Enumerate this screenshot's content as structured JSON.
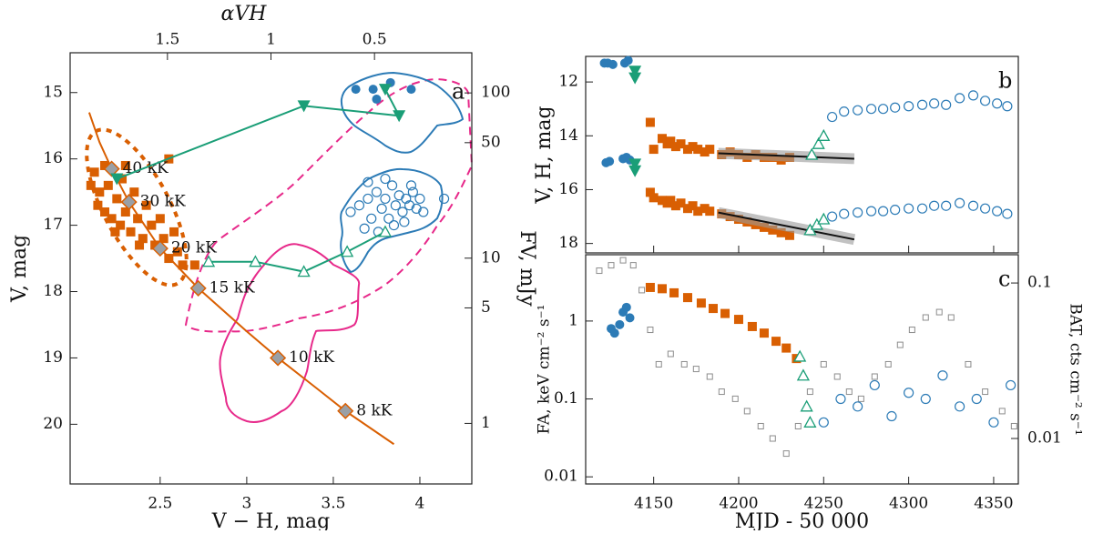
{
  "chart_data": [
    {
      "type": "scatter",
      "label": "a",
      "xlabel": "V − H, mag",
      "ylabel": "V, mag",
      "x2label": "αVH",
      "y2label": "FV, mJy",
      "xlim": [
        1.98,
        4.3
      ],
      "xticks": [
        2.5,
        3,
        3.5,
        4
      ],
      "ylim": [
        20.9,
        14.4
      ],
      "yticks": [
        15,
        16,
        17,
        18,
        19,
        20
      ],
      "x2lim": [
        1.97,
        0.03
      ],
      "x2ticks": [
        1.5,
        1,
        0.5
      ],
      "y2lim": [
        0.43,
        175
      ],
      "y2ticks": [
        100,
        50,
        10,
        5,
        1
      ],
      "y2log": true,
      "series": [
        {
          "color": "#d95f02",
          "marker": "square",
          "x": [
            2.12,
            2.15,
            2.18,
            2.2,
            2.22,
            2.25,
            2.27,
            2.28,
            2.3,
            2.33,
            2.35,
            2.37,
            2.4,
            2.42,
            2.45,
            2.47,
            2.5,
            2.52,
            2.55,
            2.58,
            2.6,
            2.63,
            2.3,
            2.18,
            2.14,
            2.24,
            2.38,
            2.55,
            2.7,
            2.1
          ],
          "values": [
            16.2,
            16.5,
            16.8,
            16.4,
            16.9,
            16.6,
            17.0,
            16.3,
            16.8,
            17.1,
            16.5,
            16.9,
            17.2,
            16.7,
            17.0,
            17.3,
            16.9,
            17.2,
            17.5,
            17.1,
            17.4,
            17.6,
            16.1,
            16.1,
            16.7,
            17.1,
            17.3,
            16.0,
            17.6,
            16.4
          ]
        },
        {
          "color": "#d95f02",
          "marker": "none",
          "line": true,
          "x": [
            2.09,
            2.15,
            2.22,
            2.32,
            2.5,
            2.72,
            3.0,
            3.18,
            3.4,
            3.57,
            3.85
          ],
          "values": [
            15.3,
            15.75,
            16.15,
            16.65,
            17.35,
            17.95,
            18.6,
            19.0,
            19.45,
            19.8,
            20.3
          ]
        },
        {
          "color": "#9aa0a6",
          "marker": "diamond",
          "x": [
            2.22,
            2.32,
            2.5,
            2.72,
            3.18,
            3.57
          ],
          "values": [
            16.15,
            16.65,
            17.35,
            17.95,
            19.0,
            19.8
          ],
          "labels": [
            "40 kK",
            "30 kK",
            "20 kK",
            "15 kK",
            "10 kK",
            "8 kK"
          ]
        },
        {
          "color": "#2c7bb6",
          "marker": "circle",
          "x": [
            3.63,
            3.73,
            3.83,
            3.95,
            3.75
          ],
          "values": [
            14.95,
            14.95,
            14.85,
            14.95,
            15.1
          ]
        },
        {
          "color": "#2c7bb6",
          "marker": "circle-open",
          "x": [
            3.6,
            3.65,
            3.7,
            3.72,
            3.75,
            3.78,
            3.8,
            3.82,
            3.84,
            3.86,
            3.88,
            3.9,
            3.92,
            3.94,
            3.96,
            3.98,
            4.0,
            3.85,
            3.76,
            3.68,
            3.91,
            4.02,
            4.14,
            3.8,
            3.95,
            3.7
          ],
          "values": [
            16.8,
            16.7,
            16.6,
            16.9,
            16.5,
            16.75,
            16.6,
            16.9,
            16.4,
            16.7,
            16.55,
            16.8,
            16.6,
            16.7,
            16.5,
            16.75,
            16.6,
            17.0,
            17.1,
            17.05,
            16.95,
            16.8,
            16.6,
            16.3,
            16.4,
            16.35
          ]
        },
        {
          "color": "#1a9e77",
          "marker": "triangle-down",
          "line": true,
          "x": [
            2.25,
            3.33,
            3.88,
            3.8
          ],
          "values": [
            16.3,
            15.2,
            15.35,
            14.95
          ]
        },
        {
          "color": "#1a9e77",
          "marker": "triangle-open",
          "line": true,
          "x": [
            2.78,
            3.05,
            3.33,
            3.58,
            3.8
          ],
          "values": [
            17.55,
            17.55,
            17.7,
            17.4,
            17.1
          ]
        }
      ]
    },
    {
      "type": "scatter",
      "label": "b",
      "ylabel": "V, H, mag",
      "xlim": [
        4110,
        4364.5
      ],
      "xticks": [
        4150,
        4200,
        4250,
        4300,
        4350
      ],
      "ylim": [
        18.35,
        11.05
      ],
      "yticks": [
        12,
        14,
        16,
        18
      ],
      "series": [
        {
          "color": "#2c7bb6",
          "marker": "circle",
          "x": [
            4121,
            4123,
            4126,
            4133,
            4135
          ],
          "values": [
            11.3,
            11.3,
            11.35,
            11.3,
            11.2
          ]
        },
        {
          "color": "#2c7bb6",
          "marker": "circle",
          "x": [
            4122,
            4124,
            4132,
            4134,
            4136
          ],
          "values": [
            15.0,
            14.95,
            14.85,
            14.8,
            14.9
          ]
        },
        {
          "color": "#1a9e77",
          "marker": "triangle-down",
          "x": [
            4139,
            4139,
            4139,
            4139
          ],
          "values": [
            11.6,
            11.85,
            15.05,
            15.3
          ]
        },
        {
          "color": "#d95f02",
          "marker": "square",
          "x": [
            4148,
            4150,
            4155,
            4158,
            4160,
            4163,
            4166,
            4170,
            4173,
            4176,
            4180,
            4183,
            4190,
            4195,
            4200,
            4205,
            4210,
            4215,
            4220,
            4225,
            4230
          ],
          "values": [
            13.5,
            14.5,
            14.1,
            14.3,
            14.2,
            14.4,
            14.3,
            14.5,
            14.4,
            14.5,
            14.6,
            14.5,
            14.7,
            14.6,
            14.7,
            14.8,
            14.7,
            14.8,
            14.8,
            14.9,
            14.8
          ]
        },
        {
          "color": "#d95f02",
          "marker": "square",
          "x": [
            4148,
            4150,
            4155,
            4158,
            4160,
            4163,
            4166,
            4170,
            4173,
            4176,
            4180,
            4183,
            4190,
            4195,
            4200,
            4205,
            4210,
            4215,
            4220,
            4225,
            4230
          ],
          "values": [
            16.1,
            16.3,
            16.4,
            16.5,
            16.4,
            16.6,
            16.5,
            16.7,
            16.6,
            16.8,
            16.7,
            16.8,
            16.9,
            17.0,
            17.1,
            17.2,
            17.3,
            17.4,
            17.5,
            17.6,
            17.7
          ]
        },
        {
          "color": "#111111",
          "marker": "none",
          "line": true,
          "band": true,
          "x": [
            4188,
            4268
          ],
          "values": [
            14.65,
            14.85
          ]
        },
        {
          "color": "#111111",
          "marker": "none",
          "line": true,
          "band": true,
          "x": [
            4188,
            4268
          ],
          "values": [
            16.85,
            17.85
          ]
        },
        {
          "color": "#1a9e77",
          "marker": "triangle-open",
          "x": [
            4243,
            4247,
            4250
          ],
          "values": [
            14.7,
            14.3,
            14.0
          ]
        },
        {
          "color": "#1a9e77",
          "marker": "triangle-open",
          "x": [
            4242,
            4246,
            4250
          ],
          "values": [
            17.5,
            17.3,
            17.1
          ]
        },
        {
          "color": "#2c7bb6",
          "marker": "circle-open",
          "x": [
            4255,
            4262,
            4270,
            4278,
            4285,
            4292,
            4300,
            4308,
            4315,
            4322,
            4330,
            4338,
            4345,
            4352,
            4358
          ],
          "values": [
            13.3,
            13.1,
            13.05,
            13.0,
            13.0,
            12.95,
            12.9,
            12.85,
            12.8,
            12.85,
            12.6,
            12.5,
            12.7,
            12.8,
            12.9
          ]
        },
        {
          "color": "#2c7bb6",
          "marker": "circle-open",
          "x": [
            4255,
            4262,
            4270,
            4278,
            4285,
            4292,
            4300,
            4308,
            4315,
            4322,
            4330,
            4338,
            4345,
            4352,
            4358
          ],
          "values": [
            17.0,
            16.9,
            16.85,
            16.8,
            16.8,
            16.75,
            16.7,
            16.7,
            16.6,
            16.6,
            16.5,
            16.6,
            16.7,
            16.8,
            16.9
          ]
        }
      ]
    },
    {
      "type": "scatter",
      "label": "c",
      "xlabel": "MJD - 50 000",
      "ylabel": "FA, keV cm⁻² s⁻¹",
      "y2label": "BAT, cts cm⁻² s⁻¹",
      "xlim": [
        4110,
        4364.5
      ],
      "xticks": [
        4150,
        4200,
        4250,
        4300,
        4350
      ],
      "ylim": [
        0.0081,
        7.1
      ],
      "yticks": [
        0.01,
        0.1,
        1
      ],
      "ylog": true,
      "y2lim": [
        0.0051,
        0.152
      ],
      "y2ticks": [
        0.01,
        0.1
      ],
      "y2log": true,
      "series": [
        {
          "color": "#8c8c8c",
          "marker": "square-open",
          "axis": "y2",
          "x": [
            4118,
            4125,
            4132,
            4138,
            4143,
            4148,
            4153,
            4160,
            4168,
            4175,
            4183,
            4190,
            4198,
            4205,
            4213,
            4220,
            4228,
            4235,
            4242,
            4250,
            4258,
            4265,
            4272,
            4280,
            4288,
            4295,
            4302,
            4310,
            4318,
            4325,
            4335,
            4345,
            4355,
            4362
          ],
          "values": [
            0.12,
            0.13,
            0.14,
            0.13,
            0.09,
            0.05,
            0.03,
            0.035,
            0.03,
            0.028,
            0.025,
            0.02,
            0.018,
            0.015,
            0.012,
            0.01,
            0.008,
            0.012,
            0.02,
            0.03,
            0.025,
            0.02,
            0.018,
            0.025,
            0.03,
            0.04,
            0.05,
            0.06,
            0.065,
            0.06,
            0.03,
            0.02,
            0.015,
            0.012
          ]
        },
        {
          "color": "#d95f02",
          "marker": "square",
          "x": [
            4148,
            4155,
            4162,
            4170,
            4178,
            4185,
            4192,
            4200,
            4208,
            4215,
            4222,
            4228,
            4234
          ],
          "values": [
            2.7,
            2.6,
            2.3,
            2.0,
            1.7,
            1.45,
            1.25,
            1.05,
            0.85,
            0.7,
            0.55,
            0.45,
            0.33
          ]
        },
        {
          "color": "#2c7bb6",
          "marker": "circle",
          "x": [
            4125,
            4127,
            4130,
            4132,
            4134,
            4136
          ],
          "values": [
            0.8,
            0.7,
            0.9,
            1.3,
            1.5,
            1.1
          ]
        },
        {
          "color": "#1a9e77",
          "marker": "triangle-open",
          "x": [
            4236,
            4238,
            4240,
            4242
          ],
          "values": [
            0.35,
            0.2,
            0.08,
            0.05
          ]
        },
        {
          "color": "#2c7bb6",
          "marker": "circle-open",
          "x": [
            4250,
            4260,
            4270,
            4280,
            4290,
            4300,
            4310,
            4320,
            4330,
            4340,
            4350,
            4360
          ],
          "values": [
            0.05,
            0.1,
            0.08,
            0.15,
            0.06,
            0.12,
            0.1,
            0.2,
            0.08,
            0.1,
            0.05,
            0.15
          ]
        }
      ]
    }
  ]
}
